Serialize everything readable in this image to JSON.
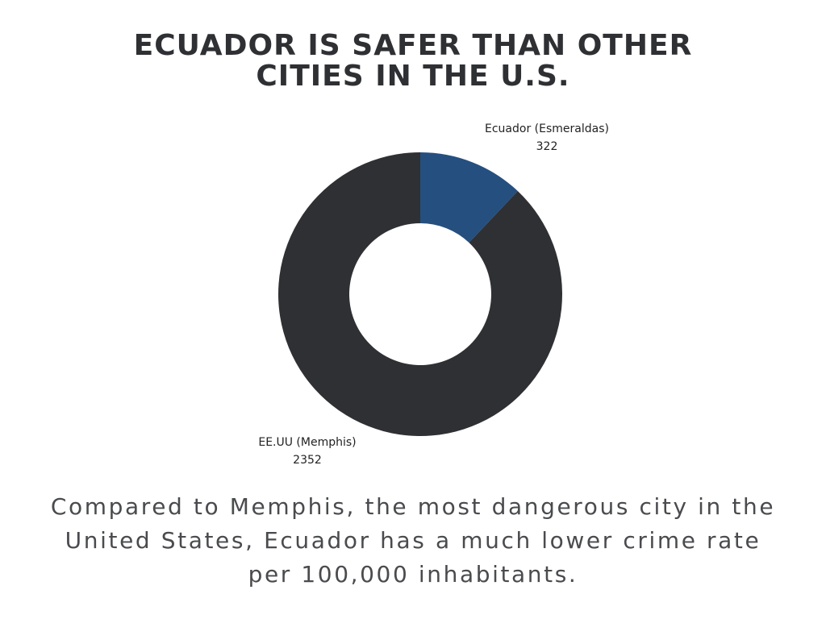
{
  "title": {
    "line1": "ECUADOR IS SAFER THAN OTHER",
    "line2": "CITIES IN THE U.S."
  },
  "chart_data": {
    "type": "pie",
    "variant": "donut",
    "title": "ECUADOR IS SAFER THAN OTHER CITIES IN THE U.S.",
    "categories": [
      "Ecuador (Esmeraldas)",
      "EE.UU (Memphis)"
    ],
    "values": [
      322,
      2352
    ],
    "colors": [
      "#254f7f",
      "#2f3033"
    ],
    "legend": "none",
    "labels": [
      {
        "name": "Ecuador (Esmeraldas)",
        "value": "322"
      },
      {
        "name": "EE.UU (Memphis)",
        "value": "2352"
      }
    ]
  },
  "caption": "Compared to Memphis, the most dangerous city in the United States, Ecuador has a much lower crime rate per 100,000 inhabitants."
}
